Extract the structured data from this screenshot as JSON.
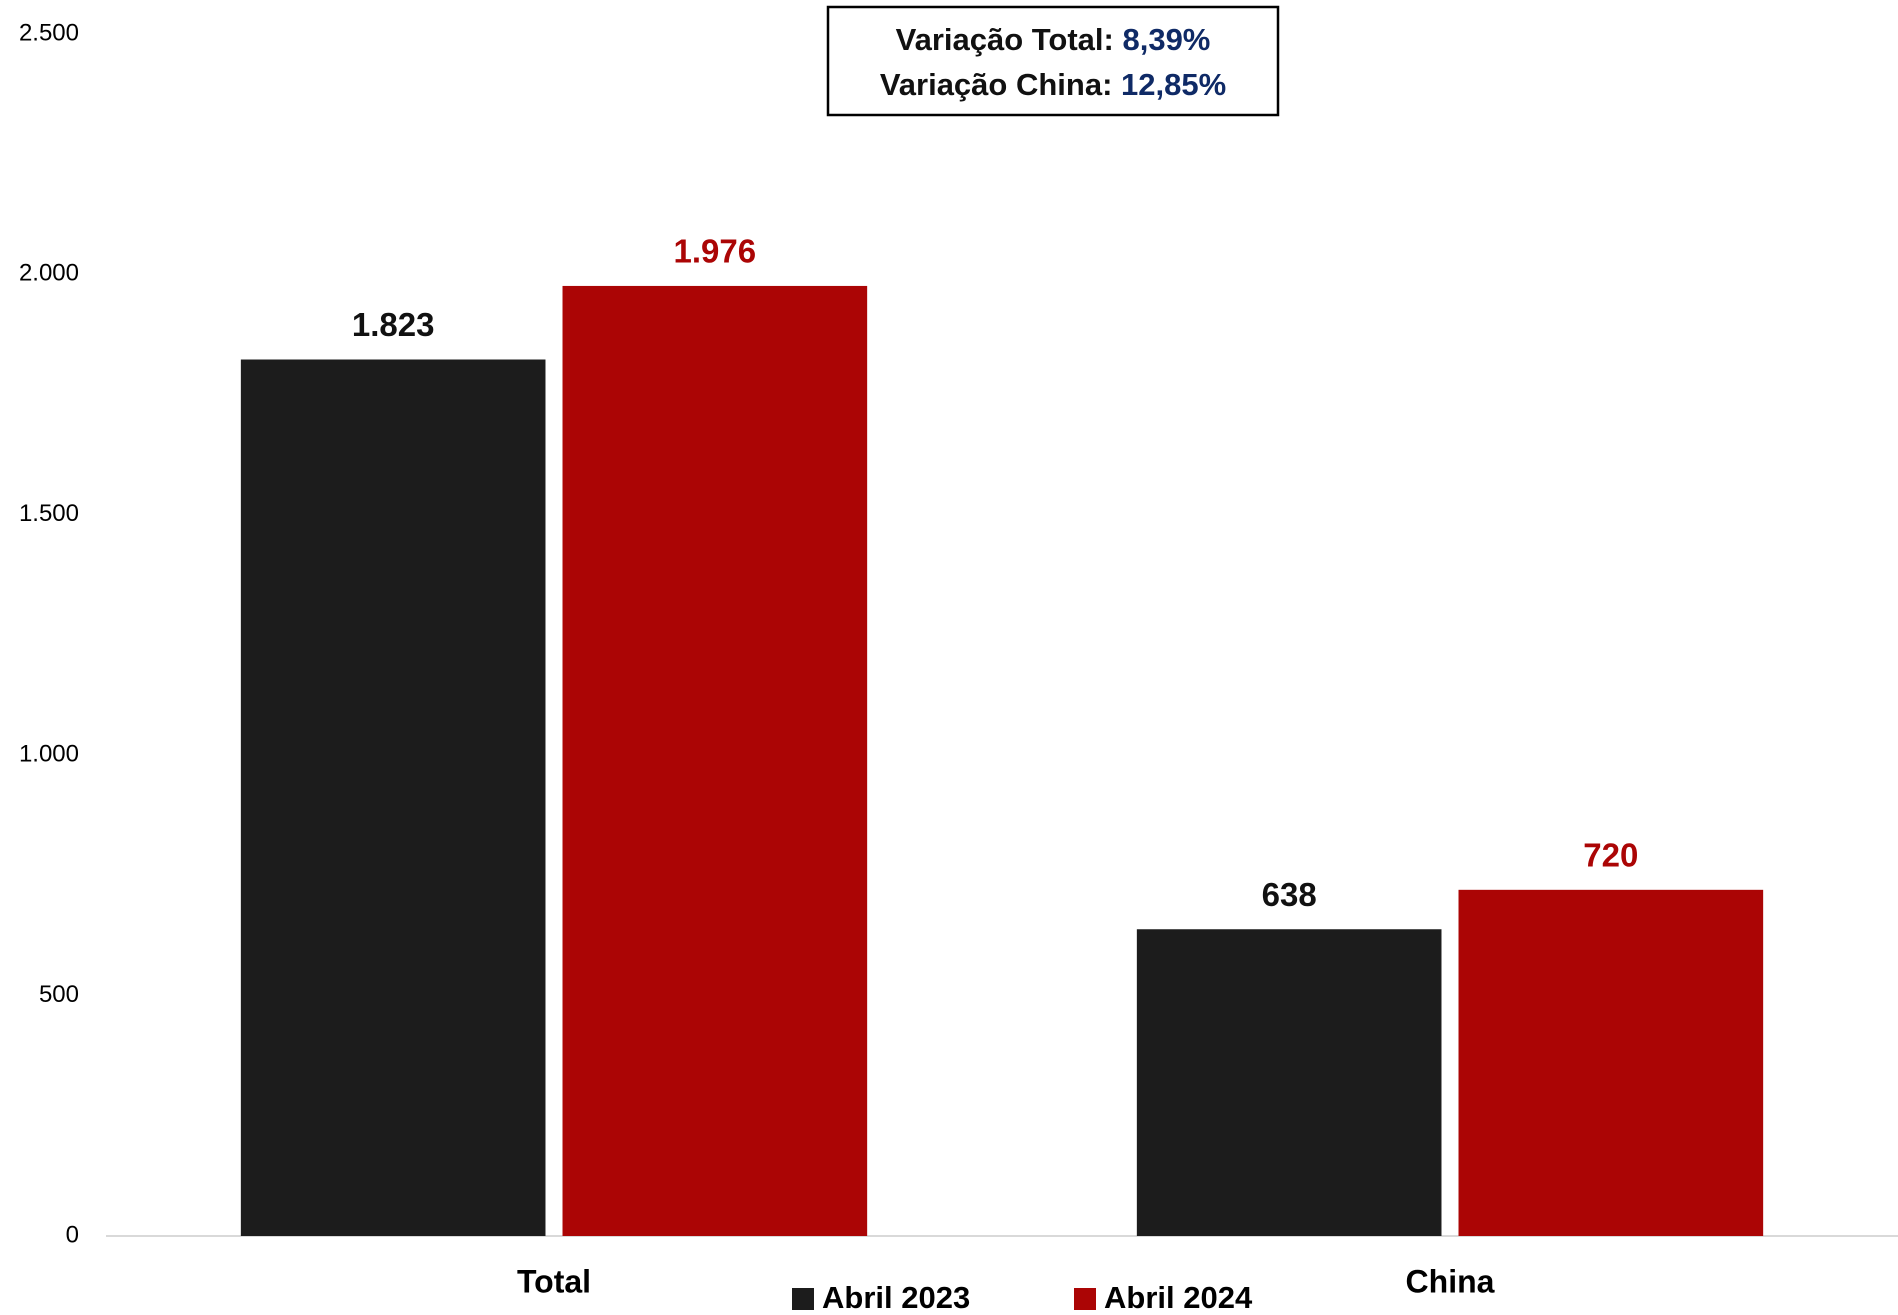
{
  "chart_data": {
    "type": "bar",
    "categories": [
      "Total",
      "China"
    ],
    "series": [
      {
        "name": "Abril 2023",
        "color": "#1c1c1c",
        "values": [
          1823,
          638
        ],
        "value_labels": [
          "1.823",
          "638"
        ]
      },
      {
        "name": "Abril 2024",
        "color": "#ab0505",
        "values": [
          1976,
          720
        ],
        "value_labels": [
          "1.976",
          "720"
        ]
      }
    ],
    "ylim": [
      0,
      2500
    ],
    "yticks": [
      0,
      500,
      {
        "value": 1000,
        "label": "1.000"
      },
      {
        "value": 1500,
        "label": "1.500"
      },
      {
        "value": 2000,
        "label": "2.000"
      },
      {
        "value": 2500,
        "label": "2.500"
      }
    ],
    "grid": false,
    "legend": "bottom",
    "annotations": [
      {
        "label": "Variação Total:",
        "value": "8,39%"
      },
      {
        "label": "Variação China:",
        "value": "12,85%"
      }
    ]
  }
}
